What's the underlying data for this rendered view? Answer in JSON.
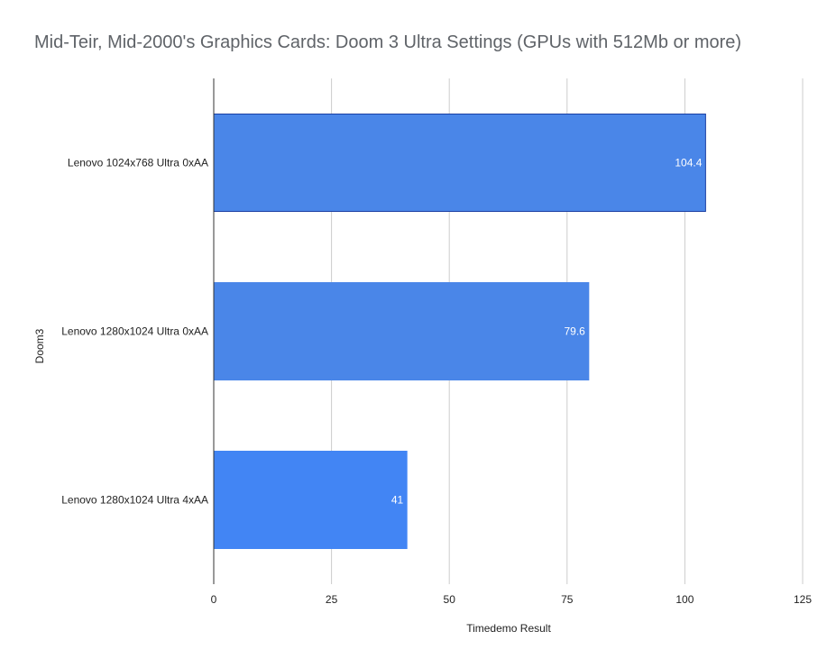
{
  "chart_data": {
    "type": "bar",
    "orientation": "horizontal",
    "title": "Mid-Teir, Mid-2000's Graphics Cards: Doom 3 Ultra Settings (GPUs with 512Mb or more)",
    "xlabel": "Timedemo Result",
    "ylabel": "Doom3",
    "categories": [
      "Lenovo 1024x768 Ultra 0xAA",
      "Lenovo 1280x1024 Ultra 0xAA",
      "Lenovo 1280x1024 Ultra 4xAA"
    ],
    "values": [
      104.4,
      79.6,
      41
    ],
    "data_labels": [
      "104.4",
      "79.6",
      "41"
    ],
    "xlim": [
      0,
      125
    ],
    "xticks": [
      0,
      25,
      50,
      75,
      100,
      125
    ],
    "xtick_labels": [
      "0",
      "25",
      "50",
      "75",
      "100",
      "125"
    ],
    "grid": "vertical",
    "legend": "none",
    "colors": {
      "bars": [
        "#4a86e8",
        "#4a86e8",
        "#4285f4"
      ],
      "bar_outline": [
        "#1a3fa3",
        "#4a86e8",
        "#4285f4"
      ],
      "grid": "#cccccc",
      "axis": "#333333",
      "title": "#5f6368"
    }
  }
}
